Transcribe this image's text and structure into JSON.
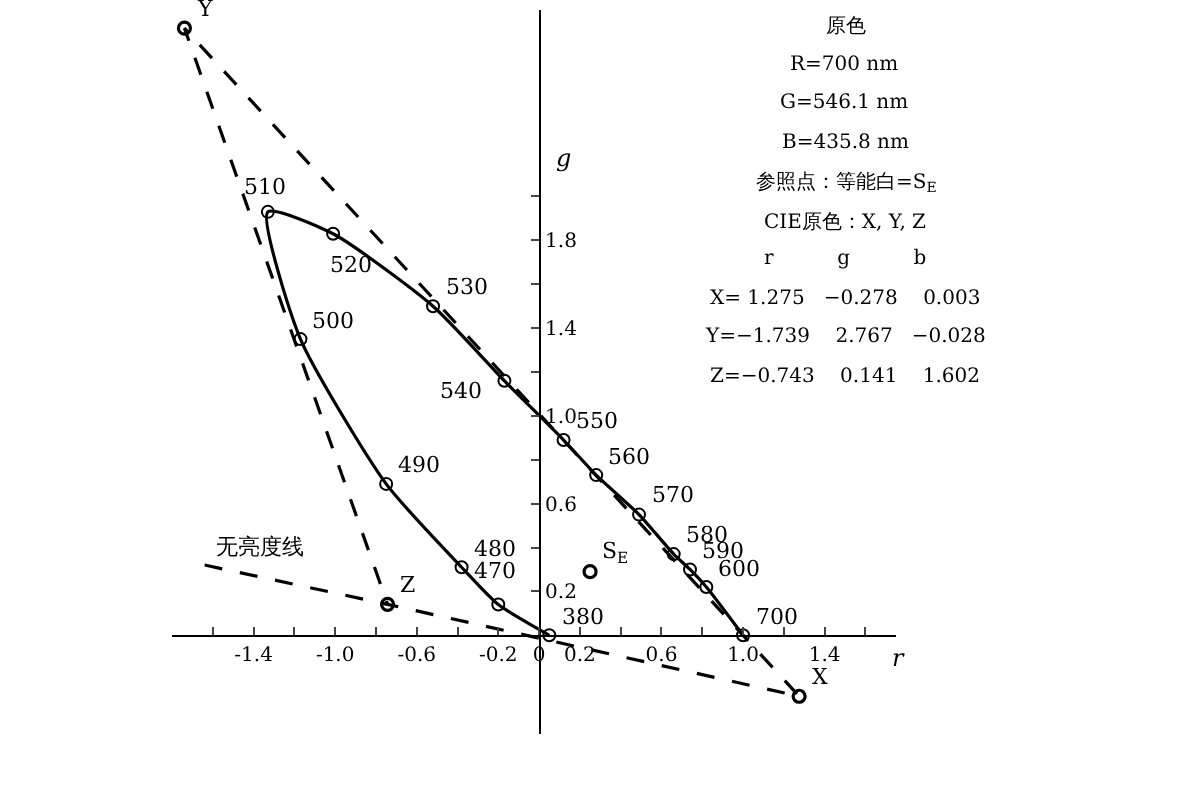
{
  "chart_data": {
    "type": "line",
    "xlabel": "r",
    "ylabel": "g",
    "xlim": [
      -1.8,
      1.75
    ],
    "ylim": [
      -0.45,
      2.85
    ],
    "xticks": [
      {
        "value": -1.6,
        "label": null
      },
      -1.4,
      {
        "value": -1.2,
        "label": null
      },
      {
        "value": -1.0,
        "label": "-1.0"
      },
      {
        "value": -0.8,
        "label": null
      },
      -0.6,
      {
        "value": -0.4,
        "label": null
      },
      -0.2,
      0,
      0.2,
      {
        "value": 0.4,
        "label": null
      },
      0.6,
      {
        "value": 0.8,
        "label": null
      },
      {
        "value": 1.0,
        "label": "1.0"
      },
      {
        "value": 1.2,
        "label": null
      },
      1.4,
      {
        "value": 1.6,
        "label": null
      }
    ],
    "yticks": [
      0.2,
      {
        "value": 0.4,
        "label": null
      },
      0.6,
      {
        "value": 0.8,
        "label": null
      },
      {
        "value": 1.0,
        "label": "1.0"
      },
      {
        "value": 1.2,
        "label": null
      },
      1.4,
      {
        "value": 1.6,
        "label": null
      },
      1.8,
      {
        "value": 2.0,
        "label": null
      }
    ],
    "legend": false,
    "series": [
      {
        "color": "#000000",
        "marker": "circle",
        "line_style": "solid",
        "x": [
          0.05,
          -0.2,
          -0.38,
          -0.75,
          -1.17,
          -1.33,
          -1.01,
          -0.52,
          -0.17,
          0.12,
          0.28,
          0.49,
          0.66,
          0.74,
          0.82,
          1.0
        ],
        "values": [
          0.0,
          0.14,
          0.31,
          0.69,
          1.35,
          1.93,
          1.83,
          1.5,
          1.16,
          0.89,
          0.73,
          0.55,
          0.37,
          0.3,
          0.22,
          0.0
        ]
      },
      {
        "color": "#000000",
        "marker": "none",
        "line_style": "dashed",
        "x": [
          -1.64,
          -0.743,
          1.275,
          -1.739,
          -0.743
        ],
        "values": [
          0.32,
          0.141,
          -0.278,
          2.767,
          0.141
        ]
      },
      {
        "type": "scatter",
        "color": "#000000",
        "marker": "circle",
        "x": [
          1.275,
          -1.739,
          -0.743
        ],
        "values": [
          -0.278,
          2.767,
          0.141
        ]
      },
      {
        "type": "scatter",
        "color": "#000000",
        "marker": "circle",
        "x": [
          0.25
        ],
        "values": [
          0.29
        ]
      }
    ],
    "annotations": [
      {
        "text": "380",
        "x": 0.05,
        "y": 0.0
      },
      {
        "text": "470",
        "x": -0.2,
        "y": 0.14
      },
      {
        "text": "480",
        "x": -0.38,
        "y": 0.31
      },
      {
        "text": "490",
        "x": -0.75,
        "y": 0.69
      },
      {
        "text": "500",
        "x": -1.17,
        "y": 1.35
      },
      {
        "text": "510",
        "x": -1.33,
        "y": 1.93
      },
      {
        "text": "520",
        "x": -1.01,
        "y": 1.83
      },
      {
        "text": "530",
        "x": -0.52,
        "y": 1.5
      },
      {
        "text": "540",
        "x": -0.17,
        "y": 1.16
      },
      {
        "text": "550",
        "x": 0.12,
        "y": 0.89
      },
      {
        "text": "560",
        "x": 0.28,
        "y": 0.73
      },
      {
        "text": "570",
        "x": 0.49,
        "y": 0.55
      },
      {
        "text": "580",
        "x": 0.66,
        "y": 0.37
      },
      {
        "text": "590",
        "x": 0.74,
        "y": 0.3
      },
      {
        "text": "600",
        "x": 0.82,
        "y": 0.22
      },
      {
        "text": "700",
        "x": 1.0,
        "y": 0.0
      },
      {
        "text": "X",
        "x": 1.275,
        "y": -0.278
      },
      {
        "text": "Y",
        "x": -1.739,
        "y": 2.767
      },
      {
        "text": "Z",
        "x": -0.743,
        "y": 0.141
      },
      {
        "text": "S$_{E}$",
        "x": 0.25,
        "y": 0.29
      },
      {
        "text": "无亮度线",
        "x": -1.64,
        "y": 0.32
      },
      "原色",
      "R=700 nm",
      "G=546.1 nm",
      "B=435.8 nm",
      "参照点：等能白=S$_{E}$",
      "CIE原色：X, Y, Z",
      "r          g          b",
      "X= 1.275   −0.278    0.003",
      "Y=−1.739    2.767   −0.028",
      "Z=−0.743    0.141    1.602"
    ]
  }
}
